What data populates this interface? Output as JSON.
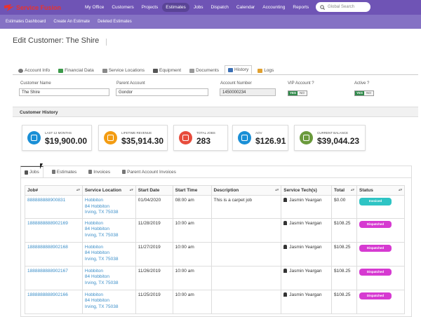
{
  "app": {
    "name": "Service Fusion"
  },
  "nav": {
    "items": [
      "My Office",
      "Customers",
      "Projects",
      "Estimates",
      "Jobs",
      "Dispatch",
      "Calendar",
      "Accounting",
      "Reports"
    ],
    "active": "Estimates"
  },
  "search": {
    "placeholder": "Global Search"
  },
  "subnav": {
    "items": [
      "Estimates Dashboard",
      "Create An Estimate",
      "Deleted Estimates"
    ]
  },
  "page": {
    "title": "Edit Customer: The Shire"
  },
  "customer_tabs": [
    "Account Info",
    "Financial Data",
    "Service Locations",
    "Equipment",
    "Documents",
    "History",
    "Logs"
  ],
  "customer_tab_active": "History",
  "form": {
    "customer_name_label": "Customer Name",
    "customer_name_value": "The Shire",
    "parent_account_label": "Parent Account",
    "parent_account_value": "Gondor",
    "account_number_label": "Account Number",
    "account_number_value": "1450000234",
    "vip_label": "VIP Account ?",
    "active_label": "Active ?",
    "yes": "YES",
    "no": "NO"
  },
  "history": {
    "heading": "Customer History"
  },
  "stats": [
    {
      "label": "LAST 12 MONTHS",
      "value": "$19,900.00",
      "color": "#1a8fd6",
      "icon": "calendar-icon"
    },
    {
      "label": "LIFETIME REVENUE",
      "value": "$35,914.30",
      "color": "#f39c12",
      "icon": "revenue-icon"
    },
    {
      "label": "TOTAL JOBS",
      "value": "283",
      "color": "#e74c3c",
      "icon": "jobs-icon"
    },
    {
      "label": "AOV",
      "value": "$126.91",
      "color": "#1a8fd6",
      "icon": "document-icon"
    },
    {
      "label": "CURRENT BALANCE",
      "value": "$39,044.23",
      "color": "#6a9a3c",
      "icon": "balance-icon"
    }
  ],
  "history_tabs": [
    "Jobs",
    "Estimates",
    "Invoices",
    "Parent Account Invoices"
  ],
  "history_tab_active": "Jobs",
  "table": {
    "headers": [
      "Job#",
      "Service Location",
      "Start Date",
      "Start Time",
      "Description",
      "Service Tech(s)",
      "Total",
      "Status"
    ],
    "rows": [
      {
        "job": "888888888900831",
        "loc1": "Hobbiton",
        "loc2": "84 Hobbiton",
        "loc3": "Irving, TX 75038",
        "date": "01/04/2020",
        "time": "08:00 am",
        "desc": "This is a carpet job",
        "tech": "Jasmin Yeargan",
        "total": "$0.00",
        "status": "Invoiced",
        "status_color": "#2ec4c4"
      },
      {
        "job": "1888888888902169",
        "loc1": "Hobbiton",
        "loc2": "84 Hobbiton",
        "loc3": "Irving, TX 75038",
        "date": "11/28/2019",
        "time": "10:00 am",
        "desc": "",
        "tech": "Jasmin Yeargan",
        "total": "$108.25",
        "status": "Dispatched",
        "status_color": "#d63ad1"
      },
      {
        "job": "1888888888902168",
        "loc1": "Hobbiton",
        "loc2": "84 Hobbiton",
        "loc3": "Irving, TX 75038",
        "date": "11/27/2019",
        "time": "10:00 am",
        "desc": "",
        "tech": "Jasmin Yeargan",
        "total": "$108.25",
        "status": "Dispatched",
        "status_color": "#d63ad1"
      },
      {
        "job": "1888888888902167",
        "loc1": "Hobbiton",
        "loc2": "84 Hobbiton",
        "loc3": "Irving, TX 75038",
        "date": "11/26/2019",
        "time": "10:00 am",
        "desc": "",
        "tech": "Jasmin Yeargan",
        "total": "$108.25",
        "status": "Dispatched",
        "status_color": "#d63ad1"
      },
      {
        "job": "1888888888902166",
        "loc1": "Hobbiton",
        "loc2": "84 Hobbiton",
        "loc3": "Irving, TX 75038",
        "date": "11/25/2019",
        "time": "10:00 am",
        "desc": "",
        "tech": "Jasmin Yeargan",
        "total": "$108.25",
        "status": "Dispatched",
        "status_color": "#d63ad1"
      }
    ]
  }
}
